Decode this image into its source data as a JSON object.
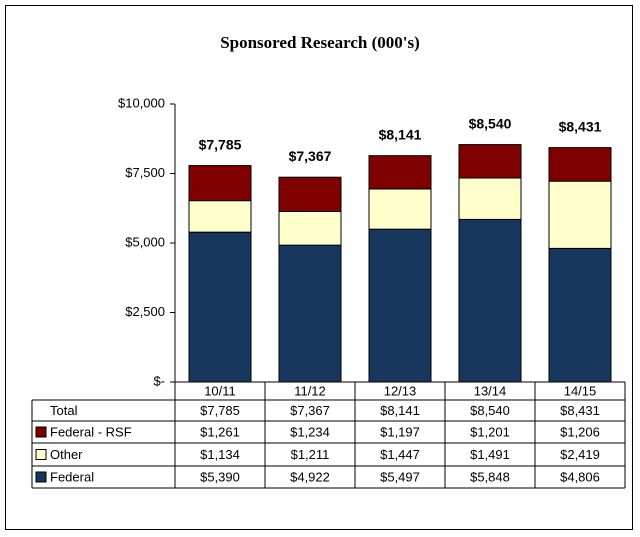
{
  "chart_data": {
    "type": "stacked_bar",
    "title": "Sponsored Research (000's)",
    "categories": [
      "10/11",
      "11/12",
      "12/13",
      "13/14",
      "14/15"
    ],
    "series": [
      {
        "name": "Federal",
        "color": "#17375e",
        "values": [
          5390,
          4922,
          5497,
          5848,
          4806
        ],
        "value_labels": [
          "$5,390",
          "$4,922",
          "$5,497",
          "$5,848",
          "$4,806"
        ]
      },
      {
        "name": "Other",
        "color": "#ffffcc",
        "values": [
          1134,
          1211,
          1447,
          1491,
          2419
        ],
        "value_labels": [
          "$1,134",
          "$1,211",
          "$1,447",
          "$1,491",
          "$2,419"
        ]
      },
      {
        "name": "Federal - RSF",
        "color": "#800000",
        "values": [
          1261,
          1234,
          1197,
          1201,
          1206
        ],
        "value_labels": [
          "$1,261",
          "$1,234",
          "$1,197",
          "$1,201",
          "$1,206"
        ]
      }
    ],
    "total": {
      "name": "Total",
      "values": [
        7785,
        7367,
        8141,
        8540,
        8431
      ],
      "value_labels": [
        "$7,785",
        "$7,367",
        "$8,141",
        "$8,540",
        "$8,431"
      ]
    },
    "ylim": [
      0,
      10000
    ],
    "yticks": [
      {
        "value": 0,
        "label": "$-"
      },
      {
        "value": 2500,
        "label": "$2,500"
      },
      {
        "value": 5000,
        "label": "$5,000"
      },
      {
        "value": 7500,
        "label": "$7,500"
      },
      {
        "value": 10000,
        "label": "$10,000"
      }
    ],
    "grid": false
  }
}
